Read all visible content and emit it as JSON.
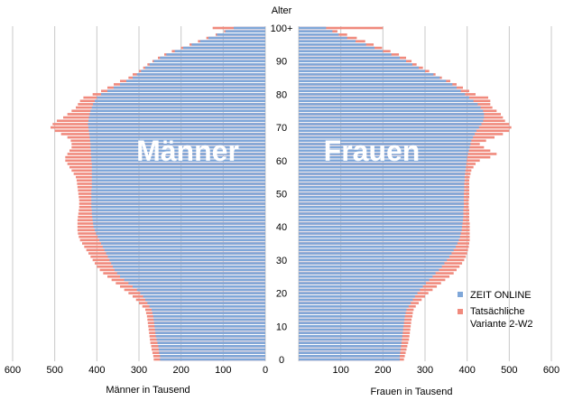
{
  "chart_data": {
    "type": "bar",
    "orientation": "horizontal",
    "layout": "population pyramid",
    "center_label": "Alter",
    "age_tick_labels": [
      "0",
      "10",
      "20",
      "30",
      "40",
      "50",
      "60",
      "70",
      "80",
      "90",
      "100+"
    ],
    "panels": [
      {
        "name": "Männer",
        "xlabel": "Männer in Tausend",
        "xlim": [
          600,
          0
        ],
        "ticks": [
          600,
          500,
          400,
          300,
          200,
          100,
          0
        ],
        "tick_labels": [
          "600",
          "500",
          "400",
          "300",
          "200",
          "100",
          "0"
        ]
      },
      {
        "name": "Frauen",
        "xlabel": "Frauen in Tausend",
        "xlim": [
          0,
          600
        ],
        "ticks": [
          100,
          200,
          300,
          400,
          500,
          600
        ],
        "tick_labels": [
          "100",
          "200",
          "300",
          "400",
          "500",
          "600"
        ]
      }
    ],
    "legend": {
      "position": "bottom-right",
      "items": [
        {
          "name": "ZEIT ONLINE",
          "color": "#7fa7d9"
        },
        {
          "name": "Tatsächliche",
          "name_line2": "Variante 2-W2",
          "color": "#f08a7d"
        }
      ]
    },
    "colors": {
      "zeit": "#7fa7d9",
      "actual": "#f08a7d",
      "grid": "#c8c8c8"
    },
    "ages": [
      0,
      1,
      2,
      3,
      4,
      5,
      6,
      7,
      8,
      9,
      10,
      11,
      12,
      13,
      14,
      15,
      16,
      17,
      18,
      19,
      20,
      21,
      22,
      23,
      24,
      25,
      26,
      27,
      28,
      29,
      30,
      31,
      32,
      33,
      34,
      35,
      36,
      37,
      38,
      39,
      40,
      41,
      42,
      43,
      44,
      45,
      46,
      47,
      48,
      49,
      50,
      51,
      52,
      53,
      54,
      55,
      56,
      57,
      58,
      59,
      60,
      61,
      62,
      63,
      64,
      65,
      66,
      67,
      68,
      69,
      70,
      71,
      72,
      73,
      74,
      75,
      76,
      77,
      78,
      79,
      80,
      81,
      82,
      83,
      84,
      85,
      86,
      87,
      88,
      89,
      90,
      91,
      92,
      93,
      94,
      95,
      96,
      97,
      98,
      99,
      100
    ],
    "series": [
      {
        "name": "ZEIT ONLINE",
        "panel": "Männer",
        "values": [
          250,
          250,
          252,
          253,
          254,
          256,
          258,
          260,
          261,
          262,
          263,
          264,
          265,
          266,
          268,
          270,
          275,
          280,
          285,
          290,
          297,
          305,
          315,
          325,
          335,
          345,
          352,
          358,
          362,
          366,
          370,
          374,
          378,
          382,
          386,
          390,
          394,
          398,
          402,
          405,
          408,
          409,
          410,
          411,
          412,
          412,
          413,
          413,
          413,
          413,
          413,
          413,
          412,
          412,
          412,
          412,
          412,
          412,
          412,
          412,
          413,
          413,
          414,
          414,
          415,
          415,
          416,
          417,
          418,
          419,
          420,
          421,
          420,
          419,
          417,
          415,
          412,
          409,
          405,
          400,
          390,
          375,
          360,
          345,
          330,
          315,
          305,
          295,
          285,
          275,
          265,
          250,
          235,
          215,
          195,
          175,
          155,
          135,
          115,
          95,
          75
        ]
      },
      {
        "name": "Tatsächliche Variante 2-W2",
        "panel": "Männer",
        "values": [
          265,
          266,
          268,
          270,
          271,
          273,
          274,
          275,
          276,
          277,
          278,
          279,
          280,
          281,
          283,
          285,
          292,
          300,
          307,
          315,
          325,
          335,
          345,
          355,
          365,
          375,
          385,
          393,
          400,
          405,
          410,
          415,
          420,
          425,
          430,
          435,
          440,
          443,
          445,
          446,
          446,
          446,
          446,
          445,
          444,
          443,
          442,
          442,
          442,
          443,
          444,
          445,
          446,
          447,
          448,
          450,
          455,
          460,
          465,
          470,
          475,
          475,
          470,
          465,
          460,
          460,
          462,
          470,
          485,
          500,
          510,
          505,
          495,
          480,
          470,
          460,
          450,
          445,
          440,
          432,
          410,
          390,
          375,
          360,
          345,
          325,
          315,
          300,
          290,
          280,
          268,
          255,
          240,
          222,
          200,
          180,
          160,
          140,
          118,
          98,
          125
        ]
      },
      {
        "name": "ZEIT ONLINE",
        "panel": "Frauen",
        "values": [
          240,
          240,
          241,
          242,
          243,
          244,
          245,
          246,
          247,
          248,
          249,
          250,
          251,
          252,
          254,
          256,
          261,
          266,
          271,
          276,
          282,
          288,
          295,
          302,
          310,
          318,
          325,
          333,
          340,
          346,
          352,
          358,
          363,
          368,
          373,
          377,
          380,
          383,
          385,
          387,
          388,
          389,
          390,
          391,
          391,
          391,
          392,
          392,
          392,
          392,
          392,
          393,
          393,
          393,
          394,
          394,
          395,
          396,
          397,
          398,
          399,
          400,
          402,
          404,
          406,
          408,
          410,
          414,
          418,
          422,
          428,
          434,
          438,
          440,
          440,
          438,
          432,
          425,
          415,
          405,
          395,
          385,
          375,
          365,
          350,
          335,
          320,
          300,
          285,
          270,
          255,
          240,
          220,
          200,
          180,
          160,
          135,
          115,
          95,
          80,
          65
        ]
      },
      {
        "name": "Tatsächliche Variante 2-W2",
        "panel": "Frauen",
        "values": [
          250,
          252,
          254,
          256,
          258,
          260,
          262,
          263,
          264,
          265,
          266,
          267,
          268,
          270,
          271,
          273,
          278,
          285,
          292,
          300,
          308,
          318,
          328,
          338,
          348,
          358,
          368,
          375,
          382,
          388,
          393,
          397,
          400,
          402,
          404,
          405,
          406,
          406,
          406,
          406,
          406,
          406,
          405,
          405,
          405,
          405,
          404,
          404,
          404,
          405,
          405,
          405,
          405,
          405,
          405,
          406,
          408,
          410,
          415,
          420,
          430,
          455,
          470,
          455,
          440,
          430,
          445,
          465,
          485,
          500,
          505,
          500,
          490,
          485,
          480,
          470,
          460,
          455,
          455,
          450,
          420,
          405,
          390,
          375,
          360,
          340,
          325,
          310,
          295,
          280,
          268,
          255,
          238,
          218,
          198,
          178,
          158,
          138,
          115,
          92,
          200
        ]
      }
    ]
  }
}
